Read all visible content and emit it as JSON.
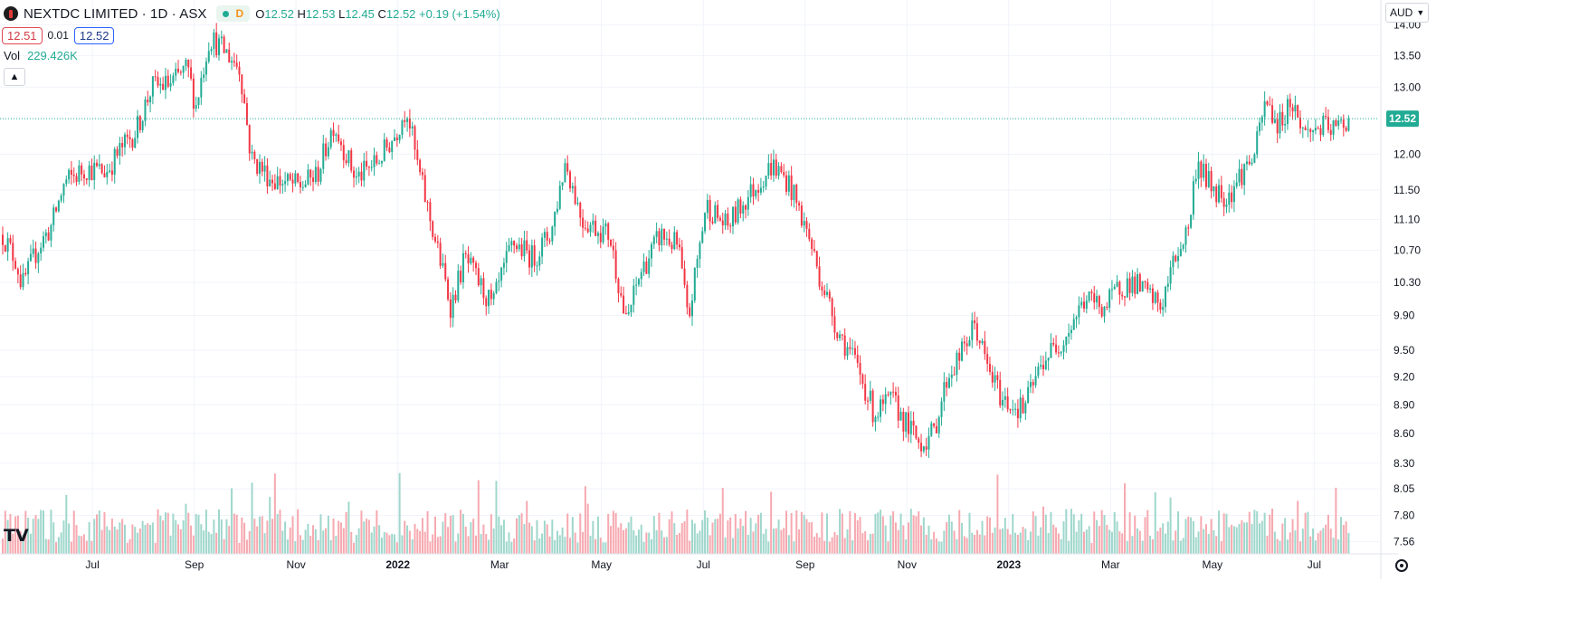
{
  "header": {
    "title": "NEXTDC LIMITED · 1D · ASX",
    "status_letter": "D",
    "ohlc": {
      "o_label": "O",
      "o": "12.52",
      "h_label": "H",
      "h": "12.53",
      "l_label": "L",
      "l": "12.45",
      "c_label": "C",
      "c": "12.52",
      "change": "+0.19 (+1.54%)"
    }
  },
  "quote": {
    "bid": "12.51",
    "spread": "0.01",
    "ask": "12.52"
  },
  "volume_legend": {
    "label": "Vol",
    "value": "229.426K"
  },
  "currency": {
    "label": "AUD"
  },
  "colors": {
    "up": "#22ab94",
    "down": "#f23645",
    "up_vol": "#9fd7cc",
    "down_vol": "#f6a9b0",
    "grid": "#f0f3fa",
    "last_price": "#22ab94"
  },
  "chart_data": {
    "type": "candlestick",
    "symbol": "NEXTDC LIMITED",
    "interval": "1D",
    "exchange": "ASX",
    "last_price": 12.52,
    "last_price_label": "12.52",
    "ylim": [
      7.45,
      14.3
    ],
    "y_scale": "log",
    "y_ticks": [
      "14.00",
      "13.50",
      "13.00",
      "12.52",
      "12.00",
      "11.50",
      "11.10",
      "10.70",
      "10.30",
      "9.90",
      "9.50",
      "9.20",
      "8.90",
      "8.60",
      "8.30",
      "8.05",
      "7.80",
      "7.56"
    ],
    "x_ticks": [
      "Jul",
      "Sep",
      "Nov",
      "2022",
      "Mar",
      "May",
      "Jul",
      "Sep",
      "Nov",
      "2023",
      "Mar",
      "May",
      "Jul"
    ],
    "date_range": [
      "2021-05",
      "2023-07"
    ],
    "price_path": [
      {
        "x": 0.0,
        "y": 10.9
      },
      {
        "x": 0.01,
        "y": 10.55
      },
      {
        "x": 0.014,
        "y": 10.25
      },
      {
        "x": 0.026,
        "y": 10.75
      },
      {
        "x": 0.035,
        "y": 11.0
      },
      {
        "x": 0.045,
        "y": 11.6
      },
      {
        "x": 0.06,
        "y": 11.8
      },
      {
        "x": 0.075,
        "y": 11.75
      },
      {
        "x": 0.085,
        "y": 12.05
      },
      {
        "x": 0.097,
        "y": 12.35
      },
      {
        "x": 0.108,
        "y": 13.0
      },
      {
        "x": 0.122,
        "y": 13.05
      },
      {
        "x": 0.134,
        "y": 13.3
      },
      {
        "x": 0.14,
        "y": 12.7
      },
      {
        "x": 0.15,
        "y": 13.8
      },
      {
        "x": 0.162,
        "y": 13.55
      },
      {
        "x": 0.172,
        "y": 13.3
      },
      {
        "x": 0.18,
        "y": 11.95
      },
      {
        "x": 0.195,
        "y": 11.65
      },
      {
        "x": 0.215,
        "y": 11.55
      },
      {
        "x": 0.228,
        "y": 11.7
      },
      {
        "x": 0.24,
        "y": 12.45
      },
      {
        "x": 0.256,
        "y": 11.65
      },
      {
        "x": 0.272,
        "y": 11.9
      },
      {
        "x": 0.285,
        "y": 12.3
      },
      {
        "x": 0.293,
        "y": 12.7
      },
      {
        "x": 0.3,
        "y": 11.9
      },
      {
        "x": 0.31,
        "y": 11.1
      },
      {
        "x": 0.325,
        "y": 10.0
      },
      {
        "x": 0.335,
        "y": 10.6
      },
      {
        "x": 0.355,
        "y": 10.0
      },
      {
        "x": 0.37,
        "y": 10.8
      },
      {
        "x": 0.385,
        "y": 10.6
      },
      {
        "x": 0.398,
        "y": 10.95
      },
      {
        "x": 0.408,
        "y": 11.9
      },
      {
        "x": 0.42,
        "y": 11.1
      },
      {
        "x": 0.44,
        "y": 10.9
      },
      {
        "x": 0.452,
        "y": 9.8
      },
      {
        "x": 0.462,
        "y": 10.4
      },
      {
        "x": 0.477,
        "y": 10.9
      },
      {
        "x": 0.49,
        "y": 10.75
      },
      {
        "x": 0.497,
        "y": 9.8
      },
      {
        "x": 0.51,
        "y": 11.3
      },
      {
        "x": 0.525,
        "y": 11.0
      },
      {
        "x": 0.54,
        "y": 11.4
      },
      {
        "x": 0.558,
        "y": 11.85
      },
      {
        "x": 0.57,
        "y": 11.6
      },
      {
        "x": 0.585,
        "y": 10.85
      },
      {
        "x": 0.592,
        "y": 10.4
      },
      {
        "x": 0.605,
        "y": 9.75
      },
      {
        "x": 0.62,
        "y": 9.3
      },
      {
        "x": 0.632,
        "y": 8.8
      },
      {
        "x": 0.645,
        "y": 8.95
      },
      {
        "x": 0.655,
        "y": 8.7
      },
      {
        "x": 0.665,
        "y": 8.5
      },
      {
        "x": 0.675,
        "y": 8.6
      },
      {
        "x": 0.685,
        "y": 9.2
      },
      {
        "x": 0.695,
        "y": 9.45
      },
      {
        "x": 0.705,
        "y": 9.8
      },
      {
        "x": 0.714,
        "y": 9.3
      },
      {
        "x": 0.725,
        "y": 8.95
      },
      {
        "x": 0.74,
        "y": 8.85
      },
      {
        "x": 0.755,
        "y": 9.4
      },
      {
        "x": 0.77,
        "y": 9.65
      },
      {
        "x": 0.785,
        "y": 10.1
      },
      {
        "x": 0.8,
        "y": 10.0
      },
      {
        "x": 0.81,
        "y": 10.25
      },
      {
        "x": 0.82,
        "y": 10.3
      },
      {
        "x": 0.83,
        "y": 10.15
      },
      {
        "x": 0.84,
        "y": 10.0
      },
      {
        "x": 0.85,
        "y": 10.6
      },
      {
        "x": 0.86,
        "y": 11.0
      },
      {
        "x": 0.866,
        "y": 11.9
      },
      {
        "x": 0.876,
        "y": 11.55
      },
      {
        "x": 0.888,
        "y": 11.4
      },
      {
        "x": 0.897,
        "y": 11.7
      },
      {
        "x": 0.908,
        "y": 12.0
      },
      {
        "x": 0.916,
        "y": 12.8
      },
      {
        "x": 0.925,
        "y": 12.4
      },
      {
        "x": 0.934,
        "y": 12.8
      },
      {
        "x": 0.944,
        "y": 12.3
      },
      {
        "x": 0.955,
        "y": 12.4
      },
      {
        "x": 0.966,
        "y": 12.35
      },
      {
        "x": 0.976,
        "y": 12.52
      }
    ]
  }
}
